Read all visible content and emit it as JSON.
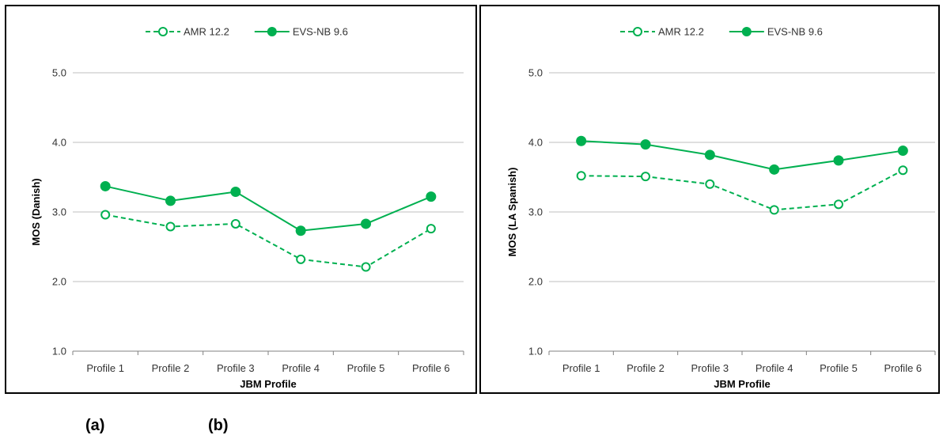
{
  "colors": {
    "series": "#00b050",
    "grid": "#bfbfbf",
    "axis": "#808080",
    "text": "#333333"
  },
  "sublabels": {
    "a": "(a)",
    "b": "(b)"
  },
  "chart_data": [
    {
      "type": "line",
      "categories": [
        "Profile 1",
        "Profile 2",
        "Profile 3",
        "Profile 4",
        "Profile 5",
        "Profile 6"
      ],
      "xlabel": "JBM Profile",
      "ylabel": "MOS (Danish)",
      "ylim": [
        1.0,
        5.0
      ],
      "yticks": [
        "1.0",
        "2.0",
        "3.0",
        "4.0",
        "5.0"
      ],
      "grid": true,
      "legend": "top-center",
      "series": [
        {
          "name": "AMR 12.2",
          "style": "dashed",
          "marker": "open-circle",
          "values": [
            2.96,
            2.79,
            2.83,
            2.32,
            2.21,
            2.76
          ]
        },
        {
          "name": "EVS-NB 9.6",
          "style": "solid",
          "marker": "filled-circle",
          "values": [
            3.37,
            3.16,
            3.29,
            2.73,
            2.83,
            3.22
          ]
        }
      ]
    },
    {
      "type": "line",
      "categories": [
        "Profile 1",
        "Profile 2",
        "Profile 3",
        "Profile 4",
        "Profile 5",
        "Profile 6"
      ],
      "xlabel": "JBM Profile",
      "ylabel": "MOS (LA Spanish)",
      "ylim": [
        1.0,
        5.0
      ],
      "yticks": [
        "1.0",
        "2.0",
        "3.0",
        "4.0",
        "5.0"
      ],
      "grid": true,
      "legend": "top-center",
      "series": [
        {
          "name": "AMR 12.2",
          "style": "dashed",
          "marker": "open-circle",
          "values": [
            3.52,
            3.51,
            3.4,
            3.03,
            3.11,
            3.6
          ]
        },
        {
          "name": "EVS-NB 9.6",
          "style": "solid",
          "marker": "filled-circle",
          "values": [
            4.02,
            3.97,
            3.82,
            3.61,
            3.74,
            3.88
          ]
        }
      ]
    }
  ]
}
